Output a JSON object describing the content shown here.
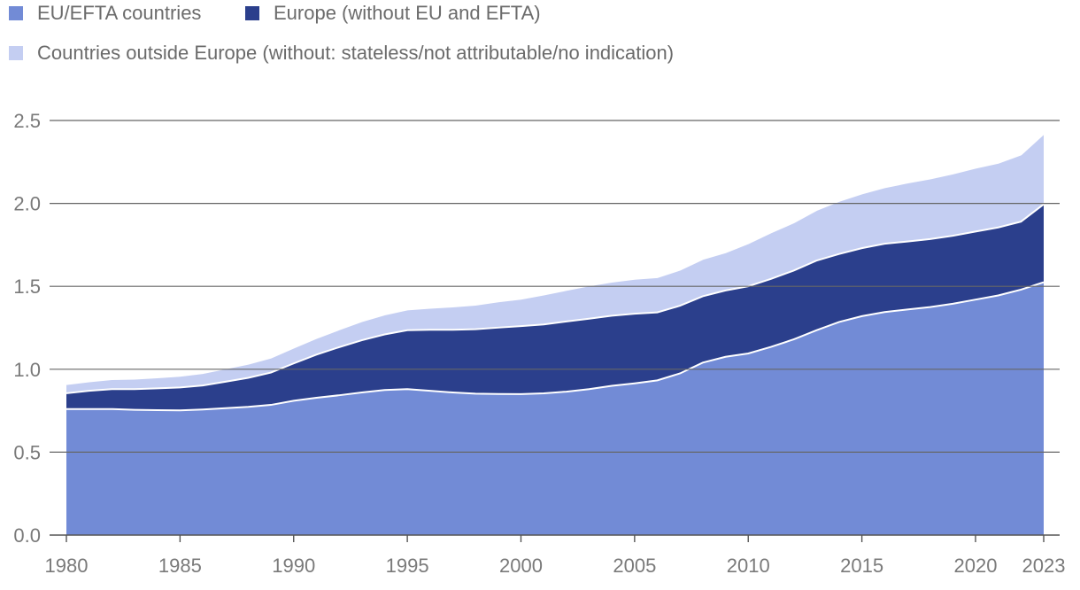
{
  "chart_data": {
    "type": "area",
    "stacked": true,
    "x": [
      1980,
      1981,
      1982,
      1983,
      1984,
      1985,
      1986,
      1987,
      1988,
      1989,
      1990,
      1991,
      1992,
      1993,
      1994,
      1995,
      1996,
      1997,
      1998,
      1999,
      2000,
      2001,
      2002,
      2003,
      2004,
      2005,
      2006,
      2007,
      2008,
      2009,
      2010,
      2011,
      2012,
      2013,
      2014,
      2015,
      2016,
      2017,
      2018,
      2019,
      2020,
      2021,
      2022,
      2023
    ],
    "series": [
      {
        "name": "EU/EFTA countries",
        "color": "#728bd6",
        "values": [
          0.76,
          0.76,
          0.76,
          0.755,
          0.753,
          0.752,
          0.757,
          0.765,
          0.773,
          0.785,
          0.81,
          0.828,
          0.843,
          0.86,
          0.875,
          0.88,
          0.87,
          0.86,
          0.853,
          0.851,
          0.85,
          0.855,
          0.865,
          0.88,
          0.9,
          0.915,
          0.933,
          0.975,
          1.04,
          1.075,
          1.095,
          1.135,
          1.18,
          1.235,
          1.285,
          1.32,
          1.345,
          1.36,
          1.375,
          1.395,
          1.42,
          1.445,
          1.48,
          1.525
        ]
      },
      {
        "name": "Europe (without EU and EFTA)",
        "color": "#2b3f8c",
        "values": [
          0.095,
          0.11,
          0.12,
          0.125,
          0.132,
          0.138,
          0.145,
          0.16,
          0.175,
          0.195,
          0.225,
          0.26,
          0.29,
          0.315,
          0.335,
          0.355,
          0.368,
          0.378,
          0.388,
          0.4,
          0.41,
          0.415,
          0.423,
          0.425,
          0.423,
          0.42,
          0.41,
          0.408,
          0.4,
          0.4,
          0.405,
          0.41,
          0.415,
          0.42,
          0.41,
          0.41,
          0.412,
          0.41,
          0.41,
          0.41,
          0.41,
          0.41,
          0.41,
          0.47
        ]
      },
      {
        "name": "Countries outside Europe (without: stateless/not attributable/no indication)",
        "color": "#c4cef2",
        "values": [
          0.055,
          0.057,
          0.06,
          0.063,
          0.066,
          0.07,
          0.075,
          0.08,
          0.085,
          0.09,
          0.095,
          0.1,
          0.107,
          0.115,
          0.12,
          0.125,
          0.132,
          0.14,
          0.148,
          0.158,
          0.165,
          0.18,
          0.19,
          0.2,
          0.205,
          0.21,
          0.212,
          0.217,
          0.225,
          0.23,
          0.26,
          0.28,
          0.29,
          0.305,
          0.32,
          0.33,
          0.34,
          0.355,
          0.365,
          0.375,
          0.385,
          0.39,
          0.405,
          0.425
        ]
      }
    ],
    "ylim": [
      0,
      2.5
    ],
    "yticks": [
      "0.0",
      "0.5",
      "1.0",
      "1.5",
      "2.0",
      "2.5"
    ],
    "xticks": [
      "1980",
      "1985",
      "1990",
      "1995",
      "2000",
      "2005",
      "2010",
      "2015",
      "2020",
      "2023"
    ],
    "grid": true,
    "legend_position": "top-left"
  }
}
